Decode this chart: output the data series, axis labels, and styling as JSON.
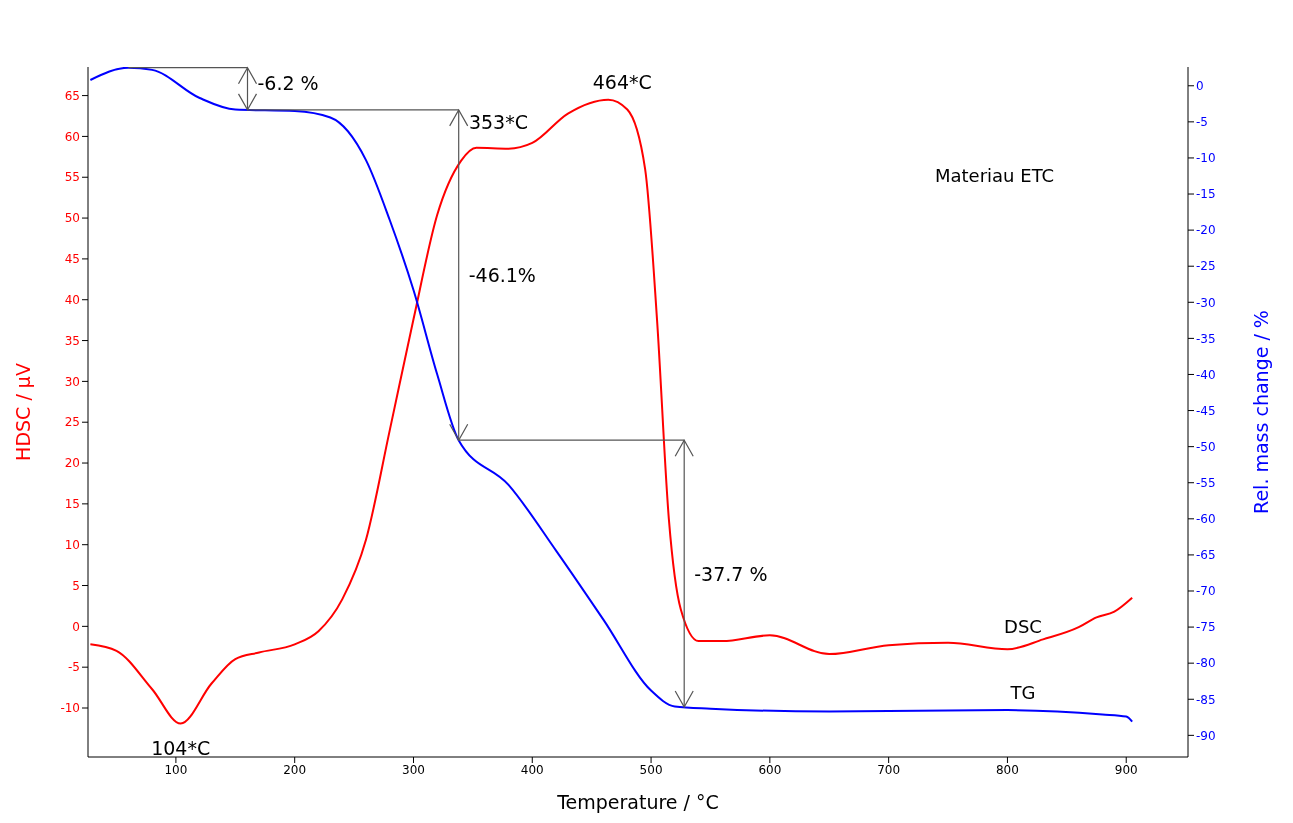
{
  "chart_data": {
    "type": "line",
    "xlabel": "Temperature / °C",
    "ylabel": "HDSC / µV",
    "y2label": "Rel. mass change / %",
    "xlim": [
      26,
      952
    ],
    "xticks": [
      100,
      200,
      300,
      400,
      500,
      600,
      700,
      800,
      900
    ],
    "ylim": [
      -16,
      68.5
    ],
    "yticks": [
      -10,
      -5,
      0,
      5,
      10,
      15,
      20,
      25,
      30,
      35,
      40,
      45,
      50,
      55,
      60,
      65
    ],
    "y2lim": [
      -93,
      2.6
    ],
    "y2ticks": [
      -90,
      -85,
      -80,
      -75,
      -70,
      -65,
      -60,
      -55,
      -50,
      -45,
      -40,
      -35,
      -30,
      -25,
      -20,
      -15,
      -10,
      -5,
      0
    ],
    "marker": "none",
    "line_style": "solid",
    "series": [
      {
        "name": "DSC",
        "color": "#ff0000",
        "x": [
          28,
          50,
          80,
          104,
          130,
          150,
          170,
          200,
          220,
          240,
          260,
          280,
          300,
          320,
          340,
          353,
          380,
          400,
          430,
          464,
          480,
          495,
          505,
          515,
          525,
          540,
          560,
          600,
          650,
          700,
          750,
          800,
          830,
          860,
          875,
          890,
          905
        ],
        "values": [
          -2.2,
          -3,
          -7.7,
          -11.9,
          -7,
          -4,
          -3.2,
          -2.2,
          -0.6,
          3.3,
          10.6,
          24,
          37.6,
          50.4,
          57,
          58.6,
          58.5,
          59.2,
          62.8,
          64.5,
          63.3,
          56,
          37.6,
          13.1,
          2.1,
          -1.8,
          -1.8,
          -1.1,
          -3.4,
          -2.3,
          -2,
          -2.8,
          -1.6,
          -0.1,
          1.1,
          1.8,
          3.5
        ]
      },
      {
        "name": "TG",
        "color": "#0000ff",
        "axis": "y2",
        "x": [
          28,
          60,
          80,
          120,
          150,
          200,
          230,
          260,
          280,
          300,
          320,
          338,
          380,
          420,
          460,
          500,
          520,
          550,
          650,
          800,
          880,
          900,
          905
        ],
        "values": [
          0.8,
          2.5,
          2.2,
          -1.7,
          -3.3,
          -3.5,
          -4.4,
          -10.3,
          -18.6,
          -28.3,
          -40,
          -49.1,
          -55.3,
          -64.4,
          -74,
          -83.8,
          -86,
          -86.3,
          -86.7,
          -86.5,
          -87.1,
          -87.4,
          -88.1
        ]
      }
    ],
    "annotations": [
      "-6.2 %",
      "-46.1%",
      "-37.7 %",
      {
        "text": "104*C",
        "x": 104,
        "y": -11.9
      },
      {
        "text": "353*C",
        "x": 353,
        "y": 58.6
      },
      {
        "text": "464*C",
        "x": 464,
        "y": 64.5
      },
      "Materiau ETC"
    ]
  }
}
